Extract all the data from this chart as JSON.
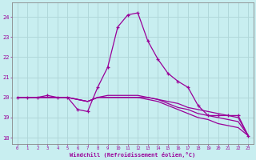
{
  "xlabel": "Windchill (Refroidissement éolien,°C)",
  "bg_color": "#c8eef0",
  "grid_color": "#b0d8da",
  "line_color": "#990099",
  "x_hours": [
    0,
    1,
    2,
    3,
    4,
    5,
    6,
    7,
    8,
    9,
    10,
    11,
    12,
    13,
    14,
    15,
    16,
    17,
    18,
    19,
    20,
    21,
    22,
    23
  ],
  "series": [
    [
      20.0,
      20.0,
      20.0,
      20.1,
      20.0,
      20.0,
      19.4,
      19.3,
      20.5,
      21.5,
      23.5,
      24.1,
      24.2,
      22.8,
      21.9,
      21.2,
      20.8,
      20.5,
      19.6,
      19.1,
      19.1,
      19.1,
      19.1,
      18.1
    ],
    [
      20.0,
      20.0,
      20.0,
      20.0,
      20.0,
      20.0,
      19.9,
      19.8,
      20.0,
      20.1,
      20.1,
      20.1,
      20.1,
      20.0,
      19.9,
      19.8,
      19.7,
      19.5,
      19.4,
      19.3,
      19.2,
      19.1,
      19.0,
      18.1
    ],
    [
      20.0,
      20.0,
      20.0,
      20.0,
      20.0,
      20.0,
      19.9,
      19.8,
      20.0,
      20.0,
      20.0,
      20.0,
      20.0,
      20.0,
      19.9,
      19.7,
      19.5,
      19.4,
      19.2,
      19.1,
      19.0,
      18.9,
      18.8,
      18.1
    ],
    [
      20.0,
      20.0,
      20.0,
      20.0,
      20.0,
      20.0,
      19.9,
      19.8,
      20.0,
      20.0,
      20.0,
      20.0,
      20.0,
      19.9,
      19.8,
      19.6,
      19.4,
      19.2,
      19.0,
      18.9,
      18.7,
      18.6,
      18.5,
      18.1
    ]
  ],
  "ylim": [
    17.7,
    24.7
  ],
  "yticks": [
    18,
    19,
    20,
    21,
    22,
    23,
    24
  ],
  "xticks": [
    0,
    1,
    2,
    3,
    4,
    5,
    6,
    7,
    8,
    9,
    10,
    11,
    12,
    13,
    14,
    15,
    16,
    17,
    18,
    19,
    20,
    21,
    22,
    23
  ],
  "marker": "+",
  "marker_size": 3.5,
  "line_width": 0.9
}
